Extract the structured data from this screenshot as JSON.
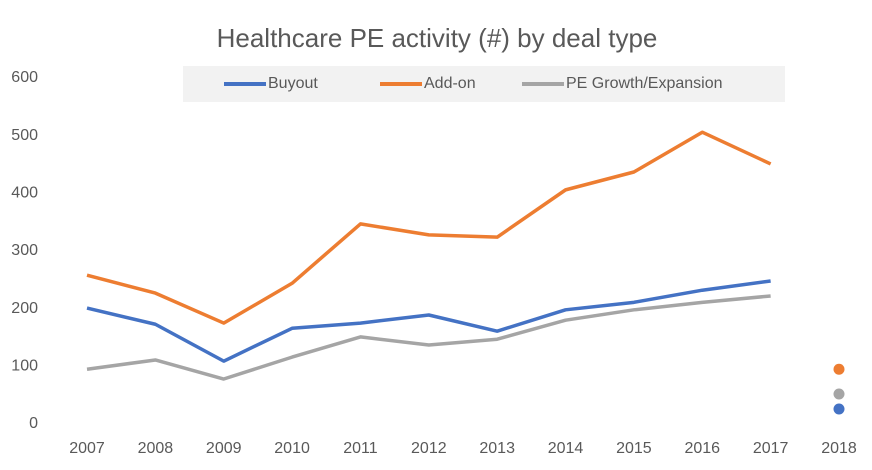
{
  "chart_data": {
    "type": "line",
    "title": "Healthcare PE activity (#) by deal type",
    "categories": [
      "2007",
      "2008",
      "2009",
      "2010",
      "2011",
      "2012",
      "2013",
      "2014",
      "2015",
      "2016",
      "2017",
      "2018"
    ],
    "series": [
      {
        "name": "Buyout",
        "color": "#4472c4",
        "values": [
          201,
          173,
          109,
          166,
          175,
          189,
          161,
          198,
          211,
          232,
          248,
          26
        ]
      },
      {
        "name": "Add-on",
        "color": "#ed7d31",
        "values": [
          258,
          227,
          175,
          244,
          347,
          328,
          324,
          406,
          437,
          506,
          451,
          95
        ]
      },
      {
        "name": "PE Growth/Expansion",
        "color": "#a5a5a5",
        "values": [
          95,
          111,
          78,
          116,
          151,
          137,
          147,
          180,
          198,
          211,
          222,
          52
        ]
      }
    ],
    "last_as_marker": true,
    "ylim": [
      0,
      600
    ],
    "yticks": [
      0,
      100,
      200,
      300,
      400,
      500,
      600
    ],
    "grid": false,
    "legend": "top"
  }
}
